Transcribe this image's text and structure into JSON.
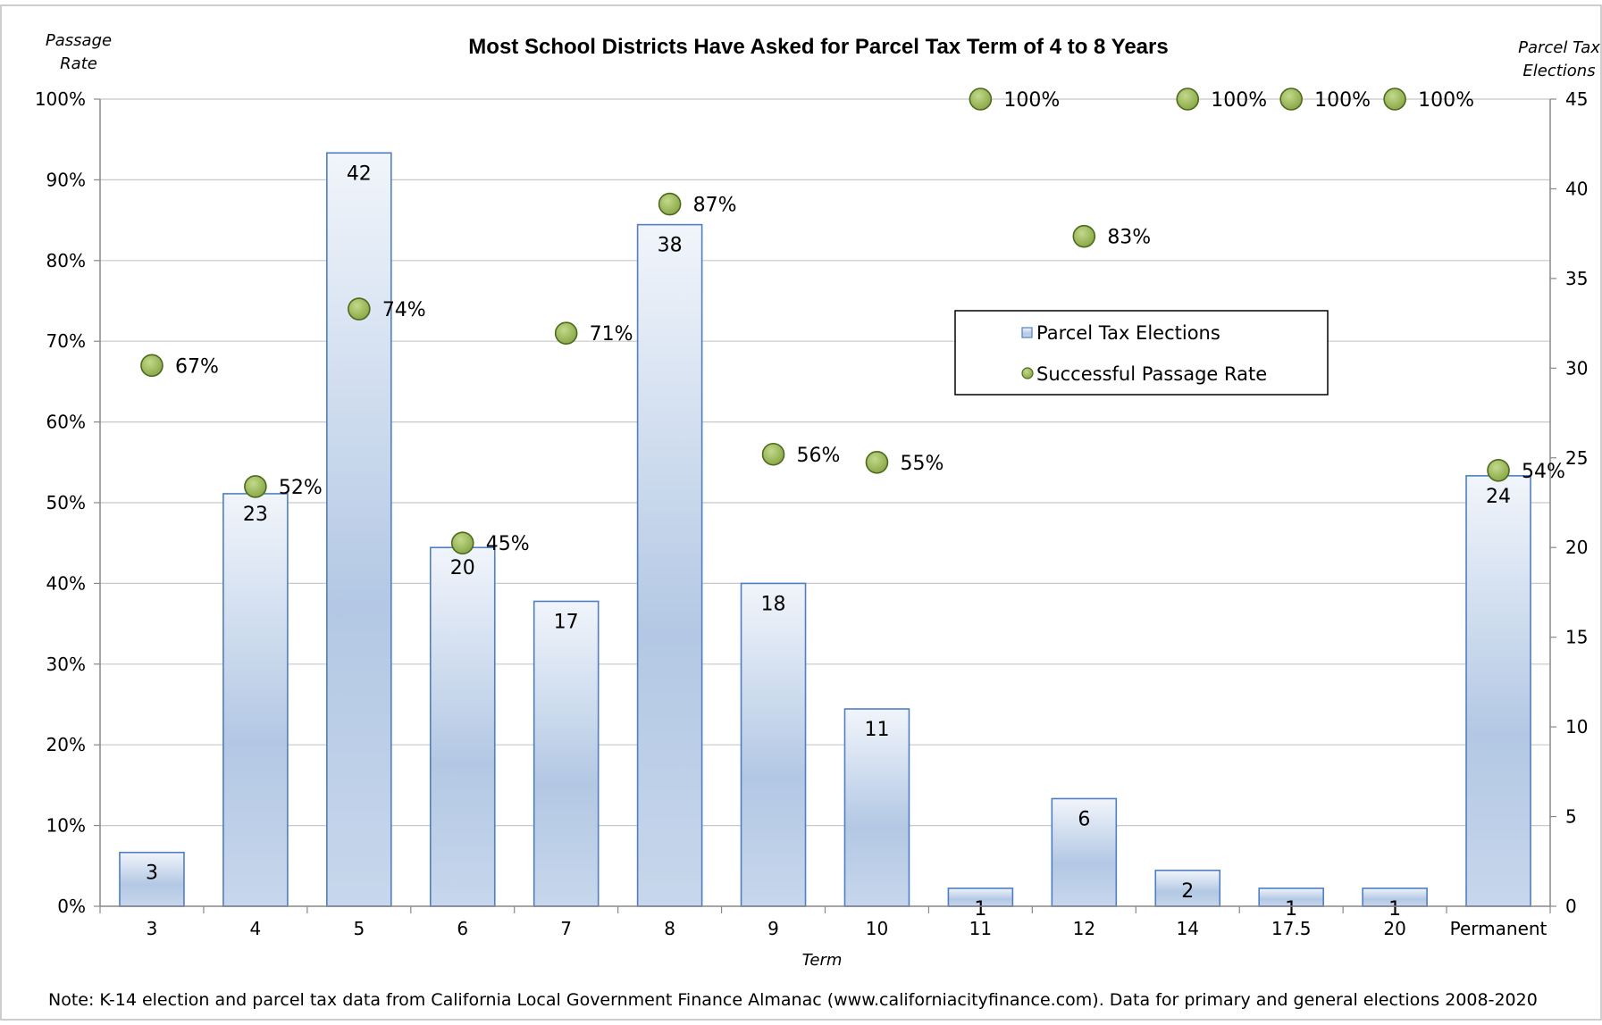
{
  "chart_data": {
    "type": "bar",
    "title": "Most School Districts Have Asked for Parcel Tax Term of 4 to 8 Years",
    "xlabel": "Term",
    "ylabel_left": [
      "Passage",
      "Rate"
    ],
    "ylabel_right": [
      "Parcel Tax",
      "Elections"
    ],
    "categories": [
      "3",
      "4",
      "5",
      "6",
      "7",
      "8",
      "9",
      "10",
      "11",
      "12",
      "14",
      "17.5",
      "20",
      "Permanent"
    ],
    "series": [
      {
        "name": "Parcel Tax Elections",
        "type": "bar",
        "axis": "right",
        "values": [
          3,
          23,
          42,
          20,
          17,
          38,
          18,
          11,
          1,
          6,
          2,
          1,
          1,
          24
        ],
        "labels": [
          "3",
          "23",
          "42",
          "20",
          "17",
          "38",
          "18",
          "11",
          "1",
          "6",
          "2",
          "1",
          "1",
          "24"
        ]
      },
      {
        "name": "Successful Passage Rate",
        "type": "scatter",
        "axis": "left",
        "values": [
          67,
          52,
          74,
          45,
          71,
          87,
          56,
          55,
          100,
          83,
          100,
          100,
          100,
          54
        ],
        "labels": [
          "67%",
          "52%",
          "74%",
          "45%",
          "71%",
          "87%",
          "56%",
          "55%",
          "100%",
          "83%",
          "100%",
          "100%",
          "100%",
          "54%"
        ]
      }
    ],
    "ylim_left": [
      0,
      100
    ],
    "ylim_right": [
      0,
      45
    ],
    "left_ticks": [
      "0%",
      "10%",
      "20%",
      "30%",
      "40%",
      "50%",
      "60%",
      "70%",
      "80%",
      "90%",
      "100%"
    ],
    "right_ticks": [
      "0",
      "5",
      "10",
      "15",
      "20",
      "25",
      "30",
      "35",
      "40",
      "45"
    ],
    "grid": true,
    "legend_position": "upper-right",
    "colors": {
      "bar_fill_top": "#eef3fa",
      "bar_fill_mid": "#b0c6e2",
      "bar_stroke": "#4f7fc0",
      "point_fill": "#9ab85a",
      "point_stroke": "#4d6a1c",
      "grid": "#c8c8c8"
    }
  },
  "note": "Note: K-14 election and parcel tax data from California Local Government Finance Almanac (www.californiacityfinance.com). Data for primary and general elections 2008-2020"
}
